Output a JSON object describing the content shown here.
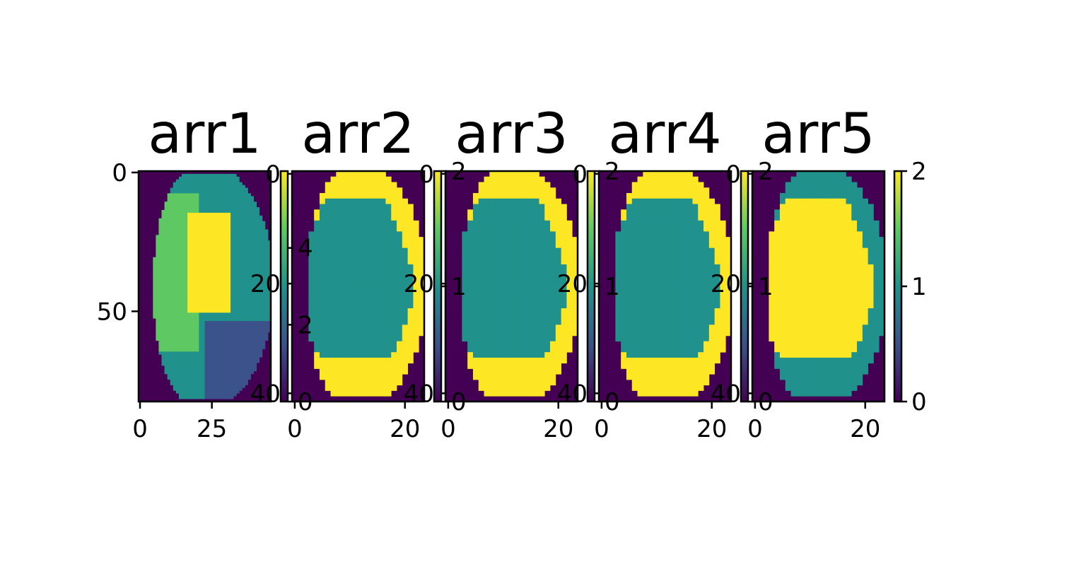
{
  "figure": {
    "background": "#ffffff"
  },
  "colormap": {
    "name": "viridis",
    "stops": [
      "#440154",
      "#3b528b",
      "#21918c",
      "#5ec962",
      "#fde725"
    ]
  },
  "chart_data": [
    {
      "type": "heatmap",
      "title": "arr1",
      "xticks": [
        "0",
        "25"
      ],
      "yticks": [
        "0",
        "50"
      ],
      "xlim": [
        -0.5,
        45.5
      ],
      "ylim": [
        82.5,
        -0.5
      ],
      "value_range": [
        0,
        6
      ],
      "description_levels": [
        "background",
        "blue",
        "teal",
        "green",
        "yellow"
      ],
      "colorbar": {
        "ticks": [
          "0",
          "2",
          "4"
        ],
        "range": [
          0,
          6
        ]
      }
    },
    {
      "type": "heatmap",
      "title": "arr2",
      "xticks": [
        "0",
        "20"
      ],
      "yticks": [
        "0",
        "20",
        "40"
      ],
      "xlim": [
        -0.5,
        23.5
      ],
      "ylim": [
        41.5,
        -0.5
      ],
      "value_range": [
        0,
        2
      ],
      "colorbar": {
        "ticks": [
          "0",
          "1",
          "2"
        ],
        "range": [
          0,
          2
        ]
      }
    },
    {
      "type": "heatmap",
      "title": "arr3",
      "xticks": [
        "0",
        "20"
      ],
      "yticks": [
        "0",
        "20",
        "40"
      ],
      "xlim": [
        -0.5,
        23.5
      ],
      "ylim": [
        41.5,
        -0.5
      ],
      "value_range": [
        0,
        2
      ],
      "colorbar": {
        "ticks": [
          "0",
          "1",
          "2"
        ],
        "range": [
          0,
          2
        ]
      }
    },
    {
      "type": "heatmap",
      "title": "arr4",
      "xticks": [
        "0",
        "20"
      ],
      "yticks": [
        "0",
        "20",
        "40"
      ],
      "xlim": [
        -0.5,
        23.5
      ],
      "ylim": [
        41.5,
        -0.5
      ],
      "value_range": [
        0,
        2
      ],
      "colorbar": {
        "ticks": [
          "0",
          "1",
          "2"
        ],
        "range": [
          0,
          2
        ]
      }
    },
    {
      "type": "heatmap",
      "title": "arr5",
      "xticks": [
        "0",
        "20"
      ],
      "yticks": [
        "0",
        "20",
        "40"
      ],
      "xlim": [
        -0.5,
        23.5
      ],
      "ylim": [
        41.5,
        -0.5
      ],
      "value_range": [
        0,
        2
      ],
      "colorbar": {
        "ticks": [
          "0",
          "1",
          "2"
        ],
        "range": [
          0,
          2
        ]
      }
    }
  ]
}
